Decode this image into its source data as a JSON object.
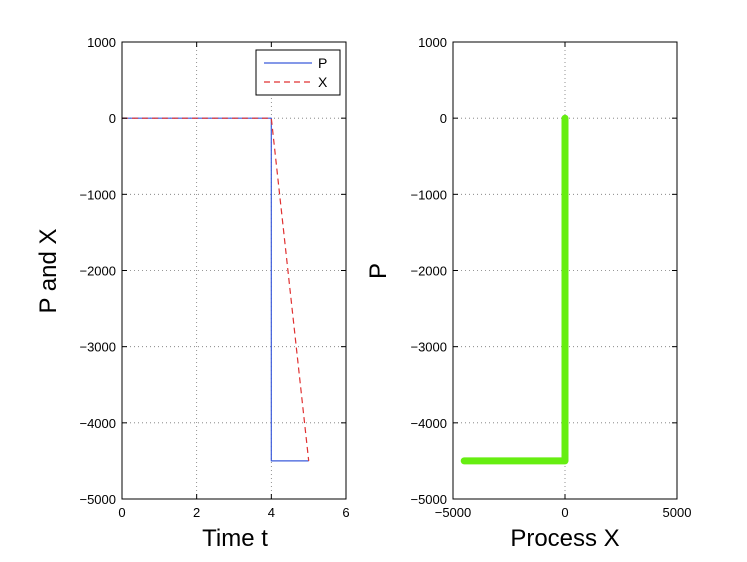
{
  "chart_data": [
    {
      "type": "line",
      "xlabel": "Time  t",
      "ylabel": "P and X",
      "xlim": [
        0,
        6
      ],
      "ylim": [
        -5000,
        1000
      ],
      "xticks": [
        "0",
        "2",
        "4",
        "6"
      ],
      "yticks": [
        "1000",
        "0",
        "−1000",
        "−2000",
        "−3000",
        "−4000",
        "−5000"
      ],
      "grid": true,
      "legend": {
        "position": "top-right",
        "entries": [
          "P",
          "X"
        ]
      },
      "series": [
        {
          "name": "P",
          "color": "#3b5bdb",
          "style": "solid",
          "x": [
            0,
            4,
            4,
            5
          ],
          "y": [
            0,
            0,
            -4500,
            -4500
          ]
        },
        {
          "name": "X",
          "color": "#e03131",
          "style": "dashed",
          "x": [
            0,
            4,
            5
          ],
          "y": [
            0,
            0,
            -4500
          ]
        }
      ]
    },
    {
      "type": "line",
      "xlabel": "Process  X",
      "ylabel": "P",
      "xlim": [
        -5000,
        5000
      ],
      "ylim": [
        -5000,
        1000
      ],
      "xticks": [
        "−5000",
        "0",
        "5000"
      ],
      "yticks": [
        "1000",
        "0",
        "−1000",
        "−2000",
        "−3000",
        "−4000",
        "−5000"
      ],
      "grid": true,
      "series": [
        {
          "color": "#66ee11",
          "style": "thick",
          "x": [
            -4500,
            0,
            0
          ],
          "y": [
            -4500,
            -4500,
            0
          ]
        }
      ]
    }
  ]
}
